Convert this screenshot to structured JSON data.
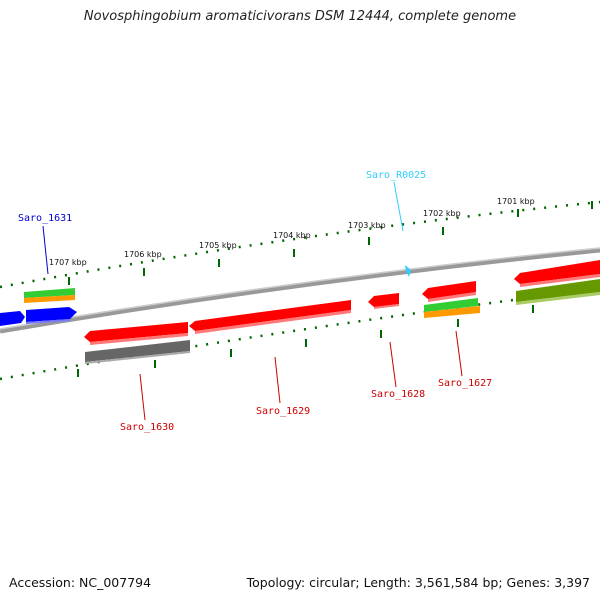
{
  "header": {
    "title": "Novosphingobium aromaticivorans DSM 12444, complete genome"
  },
  "footer": {
    "accession": "Accession: NC_007794",
    "summary": "Topology: circular; Length: 3,561,584 bp; Genes: 3,397"
  },
  "map": {
    "ticks": [
      "1701 kbp",
      "1702 kbp",
      "1703 kbp",
      "1704 kbp",
      "1705 kbp",
      "1706 kbp",
      "1707 kbp"
    ],
    "gene_labels": {
      "saro_r0025": "Saro_R0025",
      "saro_1631": "Saro_1631",
      "saro_1630": "Saro_1630",
      "saro_1629": "Saro_1629",
      "saro_1628": "Saro_1628",
      "saro_1627": "Saro_1627"
    }
  },
  "colors": {
    "cds": "#ff0000",
    "blue_feature": "#0000ff",
    "rna": "#33ccff",
    "green_feature": "#33cc33",
    "orange_feature": "#ff9900",
    "gray_feature": "#666666",
    "olive_feature": "#669900",
    "tick_green": "#006600",
    "backbone": "#888888"
  }
}
